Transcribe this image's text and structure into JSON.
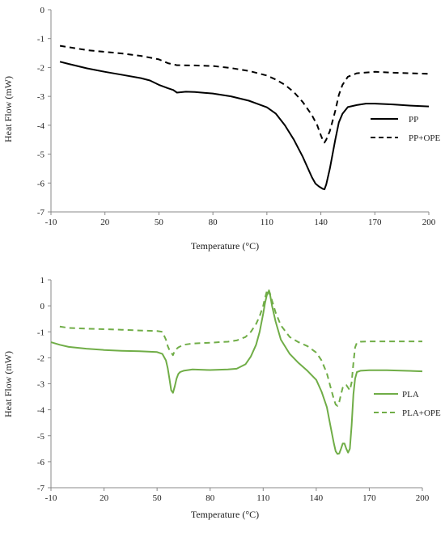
{
  "chart_data": [
    {
      "type": "line",
      "title": "",
      "xlabel": "Temperature (°C)",
      "ylabel": "Heat Flow (mW)",
      "xlim": [
        -10,
        200
      ],
      "ylim": [
        -7,
        0
      ],
      "xticks": [
        -10,
        20,
        50,
        80,
        110,
        140,
        170,
        200
      ],
      "yticks": [
        0,
        -1,
        -2,
        -3,
        -4,
        -5,
        -6,
        -7
      ],
      "grid": false,
      "legend_position": "right",
      "series": [
        {
          "name": "PP",
          "color": "#000000",
          "dash": "solid",
          "x": [
            -5,
            0,
            10,
            20,
            30,
            40,
            45,
            50,
            55,
            58,
            60,
            65,
            70,
            80,
            90,
            100,
            110,
            115,
            120,
            125,
            130,
            135,
            137,
            139,
            141,
            142,
            143,
            145,
            148,
            150,
            152,
            155,
            160,
            165,
            170,
            180,
            190,
            200
          ],
          "y": [
            -1.8,
            -1.88,
            -2.03,
            -2.15,
            -2.26,
            -2.37,
            -2.45,
            -2.6,
            -2.72,
            -2.78,
            -2.87,
            -2.84,
            -2.85,
            -2.9,
            -3.0,
            -3.15,
            -3.38,
            -3.6,
            -4.0,
            -4.5,
            -5.1,
            -5.8,
            -6.02,
            -6.12,
            -6.2,
            -6.22,
            -6.05,
            -5.5,
            -4.5,
            -3.9,
            -3.6,
            -3.37,
            -3.3,
            -3.25,
            -3.25,
            -3.28,
            -3.32,
            -3.35
          ]
        },
        {
          "name": "PP+OPE",
          "color": "#000000",
          "dash": "dashed",
          "x": [
            -5,
            0,
            10,
            20,
            30,
            40,
            50,
            55,
            60,
            70,
            80,
            90,
            100,
            110,
            115,
            120,
            125,
            130,
            135,
            138,
            140,
            141,
            142,
            143,
            145,
            148,
            150,
            152,
            155,
            160,
            170,
            180,
            190,
            200
          ],
          "y": [
            -1.25,
            -1.3,
            -1.4,
            -1.46,
            -1.52,
            -1.6,
            -1.72,
            -1.85,
            -1.92,
            -1.93,
            -1.95,
            -2.02,
            -2.12,
            -2.28,
            -2.42,
            -2.6,
            -2.85,
            -3.2,
            -3.65,
            -4.0,
            -4.35,
            -4.5,
            -4.6,
            -4.5,
            -4.2,
            -3.5,
            -2.95,
            -2.6,
            -2.32,
            -2.2,
            -2.15,
            -2.18,
            -2.2,
            -2.22
          ]
        }
      ]
    },
    {
      "type": "line",
      "title": "",
      "xlabel": "Temperature (°C)",
      "ylabel": "Heat Flow (mW)",
      "xlim": [
        -10,
        200
      ],
      "ylim": [
        -7,
        1
      ],
      "xticks": [
        -10,
        20,
        50,
        80,
        110,
        140,
        170,
        200
      ],
      "yticks": [
        1,
        0,
        -1,
        -2,
        -3,
        -4,
        -5,
        -6,
        -7
      ],
      "grid": false,
      "legend_position": "right",
      "series": [
        {
          "name": "PLA",
          "color": "#70ad47",
          "dash": "solid",
          "x": [
            -10,
            -5,
            0,
            10,
            20,
            30,
            40,
            50,
            53,
            55,
            56,
            57,
            58,
            59,
            60,
            61,
            62,
            63,
            65,
            70,
            80,
            90,
            95,
            100,
            103,
            106,
            108,
            110,
            111,
            112,
            113,
            114,
            115,
            117,
            120,
            125,
            130,
            135,
            140,
            143,
            146,
            148,
            150,
            151,
            152,
            153,
            154,
            155,
            156,
            157,
            158,
            159,
            160,
            161,
            162,
            163,
            165,
            170,
            180,
            190,
            200
          ],
          "y": [
            -1.4,
            -1.5,
            -1.58,
            -1.65,
            -1.7,
            -1.73,
            -1.75,
            -1.78,
            -1.85,
            -2.1,
            -2.4,
            -2.8,
            -3.25,
            -3.35,
            -3.1,
            -2.8,
            -2.62,
            -2.55,
            -2.5,
            -2.45,
            -2.47,
            -2.45,
            -2.42,
            -2.25,
            -1.95,
            -1.5,
            -1.0,
            -0.3,
            0.1,
            0.4,
            0.55,
            0.4,
            0.0,
            -0.6,
            -1.3,
            -1.85,
            -2.2,
            -2.5,
            -2.85,
            -3.3,
            -3.9,
            -4.6,
            -5.3,
            -5.6,
            -5.7,
            -5.68,
            -5.5,
            -5.3,
            -5.3,
            -5.5,
            -5.65,
            -5.5,
            -4.6,
            -3.4,
            -2.8,
            -2.55,
            -2.5,
            -2.48,
            -2.48,
            -2.5,
            -2.52
          ]
        },
        {
          "name": "PLA+OPE",
          "color": "#70ad47",
          "dash": "dashed",
          "x": [
            -5,
            0,
            10,
            20,
            30,
            40,
            50,
            53,
            55,
            56,
            57,
            58,
            59,
            60,
            62,
            65,
            70,
            80,
            90,
            95,
            100,
            103,
            106,
            108,
            110,
            111,
            112,
            113,
            114,
            115,
            117,
            120,
            125,
            130,
            135,
            140,
            143,
            146,
            148,
            150,
            151,
            152,
            153,
            154,
            155,
            156,
            157,
            158,
            159,
            160,
            161,
            162,
            163,
            165,
            170,
            180,
            190,
            200
          ],
          "y": [
            -0.8,
            -0.85,
            -0.88,
            -0.9,
            -0.92,
            -0.95,
            -0.97,
            -1.0,
            -1.3,
            -1.55,
            -1.7,
            -1.8,
            -1.9,
            -1.72,
            -1.6,
            -1.5,
            -1.45,
            -1.42,
            -1.38,
            -1.33,
            -1.2,
            -1.0,
            -0.7,
            -0.4,
            0.0,
            0.3,
            0.55,
            0.65,
            0.45,
            0.2,
            -0.25,
            -0.75,
            -1.2,
            -1.4,
            -1.55,
            -1.8,
            -2.1,
            -2.6,
            -3.1,
            -3.6,
            -3.8,
            -3.85,
            -3.7,
            -3.4,
            -3.15,
            -3.05,
            -3.05,
            -3.15,
            -3.25,
            -2.95,
            -2.2,
            -1.6,
            -1.42,
            -1.38,
            -1.37,
            -1.37,
            -1.37,
            -1.37
          ]
        }
      ]
    }
  ]
}
